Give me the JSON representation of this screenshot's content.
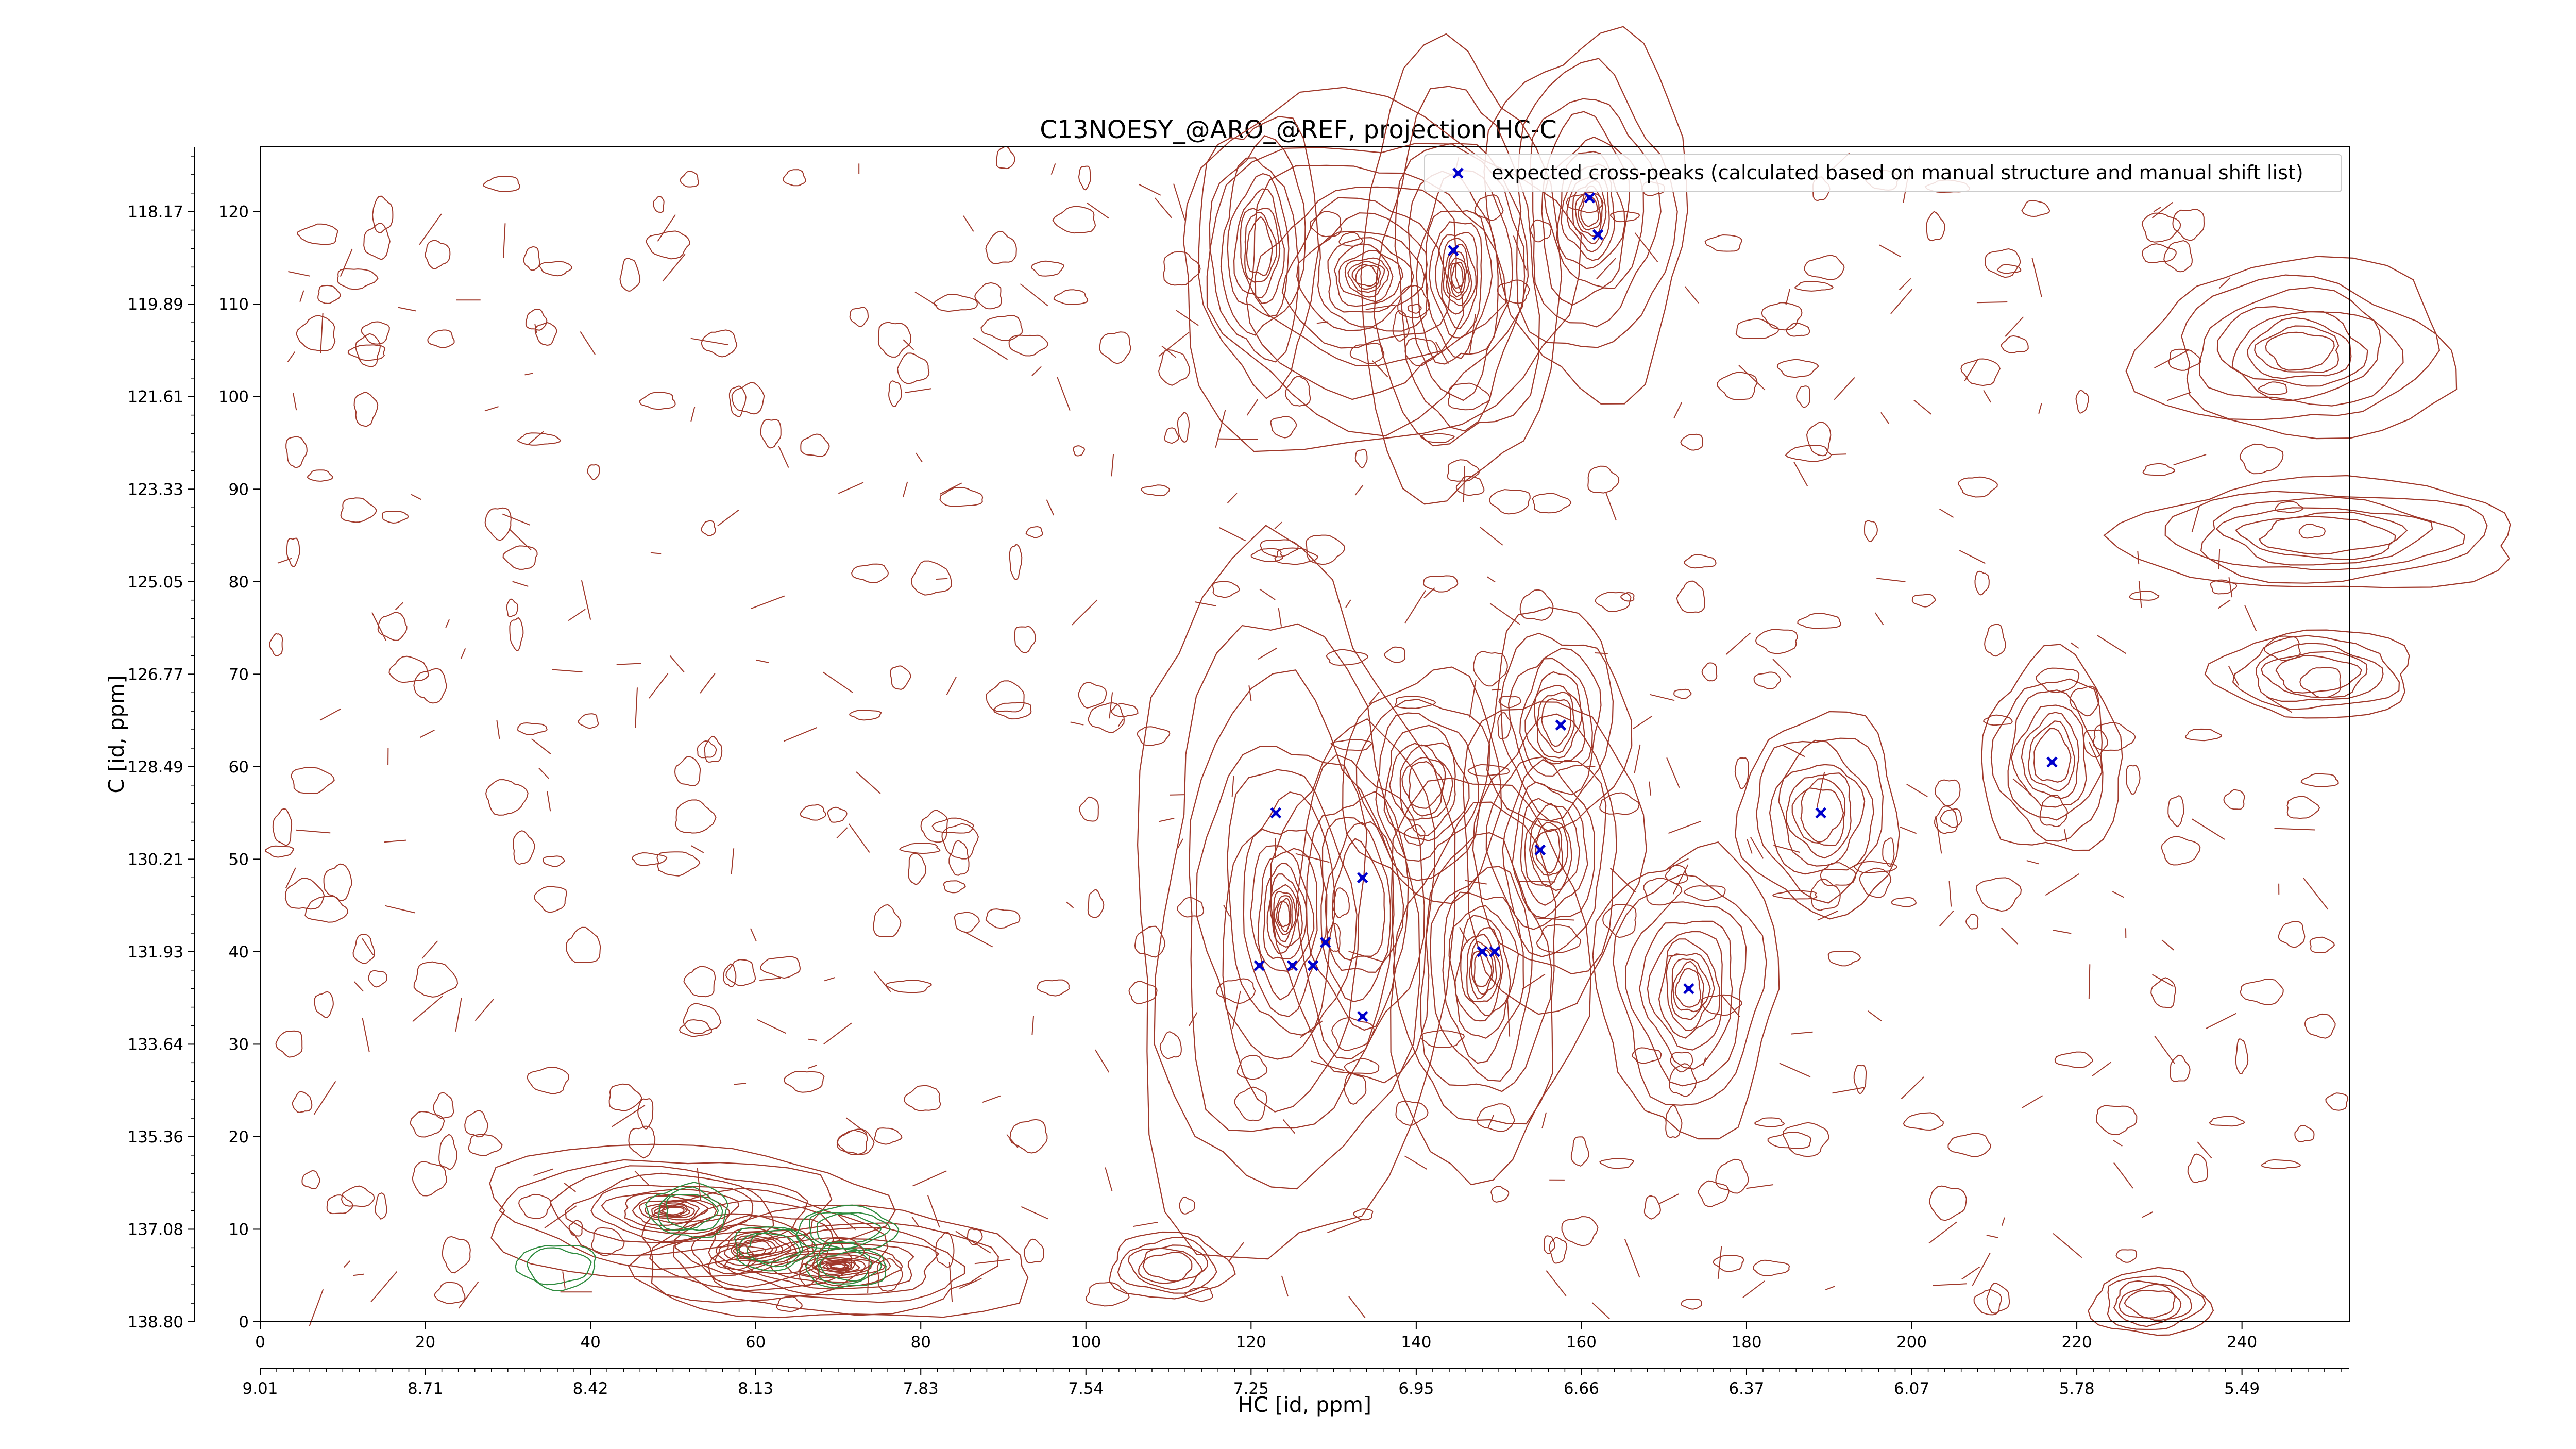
{
  "chart_data": {
    "type": "scatter",
    "title": "C13NOESY_@ARO_@REF, projection HC-C",
    "xlabel": "HC [id, ppm]",
    "ylabel": "C [id, ppm]",
    "xlim": [
      0,
      253
    ],
    "ylim": [
      0,
      127
    ],
    "x_ticks": [
      0,
      20,
      40,
      60,
      80,
      100,
      120,
      140,
      160,
      180,
      200,
      220,
      240
    ],
    "x_ticks_secondary": {
      "positions": [
        0,
        20,
        40,
        60,
        80,
        100,
        120,
        140,
        160,
        180,
        200,
        220,
        240
      ],
      "labels": [
        "9.01",
        "8.71",
        "8.42",
        "8.13",
        "7.83",
        "7.54",
        "7.25",
        "6.95",
        "6.66",
        "6.37",
        "6.07",
        "5.78",
        "5.49"
      ]
    },
    "y_ticks": [
      0,
      10,
      20,
      30,
      40,
      50,
      60,
      70,
      80,
      90,
      100,
      110,
      120
    ],
    "y_ticks_left": {
      "positions": [
        0,
        10,
        20,
        30,
        40,
        50,
        60,
        70,
        80,
        90,
        100,
        110,
        120
      ],
      "labels": [
        "138.80",
        "137.08",
        "135.36",
        "133.64",
        "131.93",
        "130.21",
        "128.49",
        "126.77",
        "125.05",
        "123.33",
        "121.61",
        "119.89",
        "118.17"
      ]
    },
    "legend": {
      "placement": "top-right"
    },
    "series": [
      {
        "name": "expected cross-peaks (calculated based on manual structure and manual shift list)",
        "color": "#0000cc",
        "marker": "x",
        "points": [
          [
            161,
            121.5
          ],
          [
            162,
            117.5
          ],
          [
            144.5,
            115.8
          ],
          [
            157.5,
            64.5
          ],
          [
            123,
            55
          ],
          [
            189,
            55
          ],
          [
            217,
            60.5
          ],
          [
            133.5,
            48
          ],
          [
            155,
            51
          ],
          [
            121,
            38.5
          ],
          [
            125,
            38.5
          ],
          [
            127.5,
            38.5
          ],
          [
            129,
            41
          ],
          [
            133.5,
            33
          ],
          [
            148,
            40
          ],
          [
            149.5,
            40
          ],
          [
            173,
            36
          ]
        ]
      }
    ],
    "contours": {
      "positive_color": "#a0382a",
      "negative_color": "#2e8b3e",
      "peaks": [
        {
          "x": 161,
          "y": 120,
          "sx": 5,
          "sy": 8,
          "levels": 12,
          "sign": 1
        },
        {
          "x": 134,
          "y": 113,
          "sx": 10,
          "sy": 8,
          "levels": 14,
          "sign": 1
        },
        {
          "x": 145,
          "y": 113,
          "sx": 5,
          "sy": 10,
          "levels": 14,
          "sign": 1
        },
        {
          "x": 121,
          "y": 116,
          "sx": 3,
          "sy": 6,
          "levels": 8,
          "sign": 1
        },
        {
          "x": 157,
          "y": 65,
          "sx": 3.5,
          "sy": 5,
          "levels": 8,
          "sign": 1
        },
        {
          "x": 141,
          "y": 58,
          "sx": 4,
          "sy": 5,
          "levels": 8,
          "sign": 1
        },
        {
          "x": 189,
          "y": 55,
          "sx": 4,
          "sy": 4.5,
          "levels": 7,
          "sign": 1
        },
        {
          "x": 217,
          "y": 61,
          "sx": 3.5,
          "sy": 4.5,
          "levels": 7,
          "sign": 1
        },
        {
          "x": 156,
          "y": 51,
          "sx": 4.5,
          "sy": 7,
          "levels": 10,
          "sign": 1
        },
        {
          "x": 124,
          "y": 44,
          "sx": 8,
          "sy": 16,
          "levels": 16,
          "sign": 1
        },
        {
          "x": 133,
          "y": 45,
          "sx": 4,
          "sy": 8,
          "levels": 6,
          "sign": 1
        },
        {
          "x": 148,
          "y": 38,
          "sx": 5,
          "sy": 9,
          "levels": 12,
          "sign": 1
        },
        {
          "x": 173,
          "y": 36,
          "sx": 4.5,
          "sy": 6.5,
          "levels": 10,
          "sign": 1
        },
        {
          "x": 247,
          "y": 105,
          "sx": 8,
          "sy": 4,
          "levels": 8,
          "sign": 1
        },
        {
          "x": 250,
          "y": 85,
          "sx": 10,
          "sy": 2.5,
          "levels": 6,
          "sign": 1
        },
        {
          "x": 249,
          "y": 70,
          "sx": 5,
          "sy": 2,
          "levels": 5,
          "sign": 1
        },
        {
          "x": 50,
          "y": 12,
          "sx": 10,
          "sy": 3,
          "levels": 14,
          "sign": 1
        },
        {
          "x": 70,
          "y": 6,
          "sx": 10,
          "sy": 2.5,
          "levels": 16,
          "sign": 1
        },
        {
          "x": 60,
          "y": 8,
          "sx": 6,
          "sy": 2.5,
          "levels": 10,
          "sign": 1
        },
        {
          "x": 110,
          "y": 6,
          "sx": 3,
          "sy": 1.5,
          "levels": 5,
          "sign": 1
        },
        {
          "x": 229,
          "y": 2,
          "sx": 3,
          "sy": 1.5,
          "levels": 5,
          "sign": 1
        },
        {
          "x": 52,
          "y": 12,
          "sx": 2,
          "sy": 1.2,
          "levels": 3,
          "sign": -1
        },
        {
          "x": 62,
          "y": 8,
          "sx": 2,
          "sy": 1,
          "levels": 3,
          "sign": -1
        },
        {
          "x": 71,
          "y": 10,
          "sx": 2.5,
          "sy": 1,
          "levels": 3,
          "sign": -1
        },
        {
          "x": 71,
          "y": 6,
          "sx": 2,
          "sy": 1,
          "levels": 3,
          "sign": -1
        },
        {
          "x": 36,
          "y": 6,
          "sx": 2,
          "sy": 1,
          "levels": 2,
          "sign": -1
        }
      ]
    }
  }
}
